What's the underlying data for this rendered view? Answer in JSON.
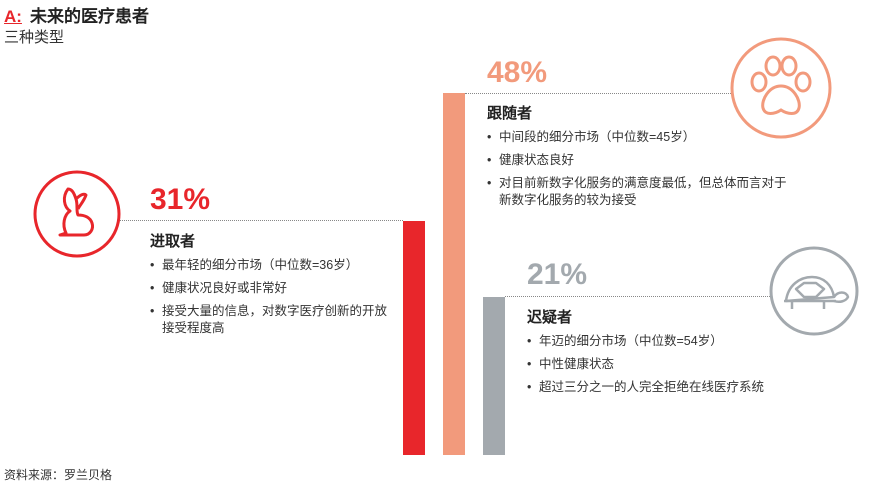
{
  "title_label": "A:",
  "title": "未来的医疗患者",
  "subtitle": "三种类型",
  "source": "资料来源：罗兰贝格",
  "colors": {
    "accent": "#e8262b",
    "progressives": "#e8262b",
    "followers": "#f29a7c",
    "skeptics": "#a3a9ae"
  },
  "chart_data": {
    "type": "bar",
    "title": "未来的医疗患者",
    "subtitle": "三种类型",
    "unit": "%",
    "categories": [
      "进取者",
      "跟随者",
      "迟疑者"
    ],
    "values": [
      31,
      48,
      21
    ],
    "labels": [
      "31%",
      "48%",
      "21%"
    ],
    "icons": [
      "rabbit-icon",
      "paw-icon",
      "turtle-icon"
    ]
  },
  "groups": [
    {
      "name": "进取者",
      "pct": "31%",
      "bullets": [
        "最年轻的细分市场（中位数=36岁）",
        "健康状况良好或非常好",
        "接受大量的信息，对数字医疗创新的开放接受程度高"
      ]
    },
    {
      "name": "跟随者",
      "pct": "48%",
      "bullets": [
        "中间段的细分市场（中位数=45岁）",
        "健康状态良好",
        "对目前新数字化服务的满意度最低，但总体而言对于新数字化服务的较为接受"
      ]
    },
    {
      "name": "迟疑者",
      "pct": "21%",
      "bullets": [
        "年迈的细分市场（中位数=54岁）",
        "中性健康状态",
        "超过三分之一的人完全拒绝在线医疗系统"
      ]
    }
  ]
}
